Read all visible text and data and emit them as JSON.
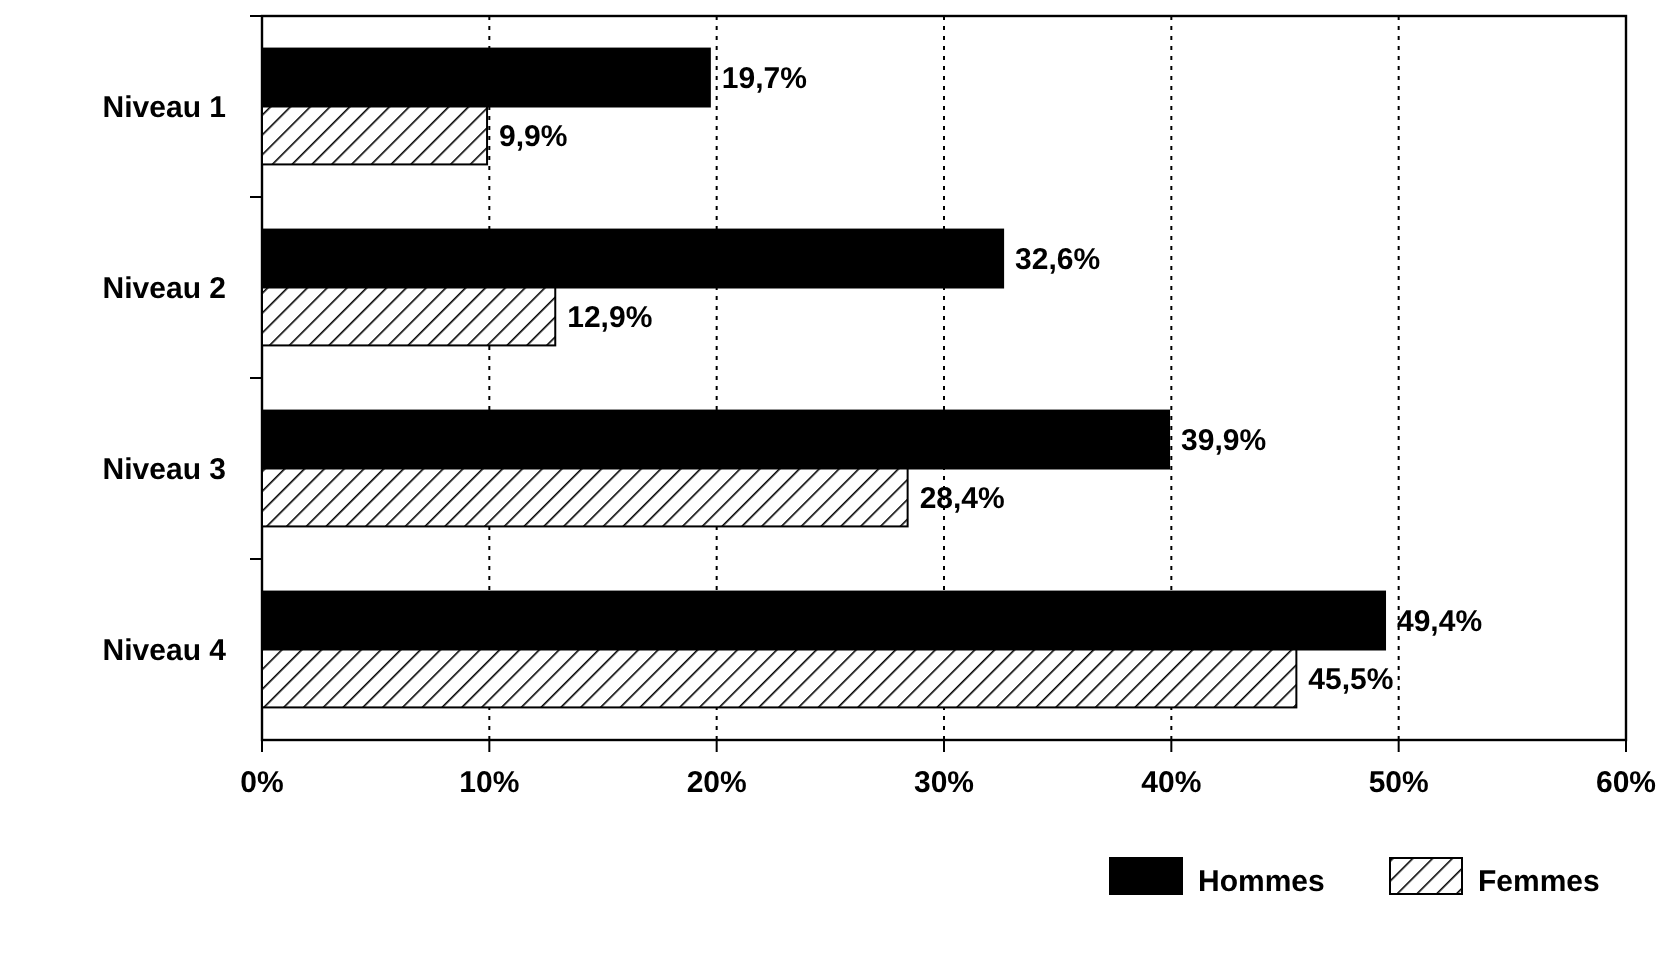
{
  "chart_data": {
    "type": "bar",
    "orientation": "horizontal",
    "categories": [
      "Niveau 1",
      "Niveau 2",
      "Niveau 3",
      "Niveau 4"
    ],
    "series": [
      {
        "name": "Hommes",
        "color": "#000000",
        "values": [
          19.7,
          32.6,
          39.9,
          49.4
        ],
        "value_labels": [
          "19,7%",
          "32,6%",
          "39,9%",
          "49,4%"
        ]
      },
      {
        "name": "Femmes",
        "color": "#000000",
        "values": [
          9.9,
          12.9,
          28.4,
          45.5
        ],
        "value_labels": [
          "9,9%",
          "12,9%",
          "28,4%",
          "45,5%"
        ]
      }
    ],
    "xlim": [
      0,
      60
    ],
    "xticks": [
      {
        "value": 0,
        "label": "0%"
      },
      {
        "value": 10,
        "label": "10%"
      },
      {
        "value": 20,
        "label": "20%"
      },
      {
        "value": 30,
        "label": "30%"
      },
      {
        "value": 40,
        "label": "40%"
      },
      {
        "value": 50,
        "label": "50%"
      },
      {
        "value": 60,
        "label": "60%"
      }
    ],
    "grid": "x",
    "legend": "bottom right"
  }
}
